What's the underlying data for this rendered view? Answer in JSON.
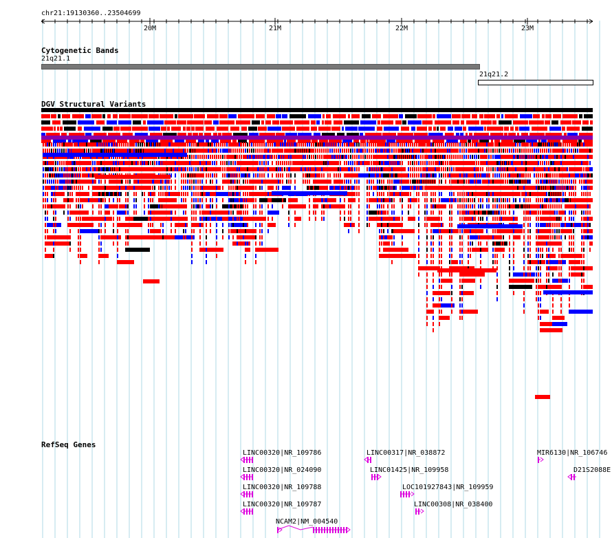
{
  "browser": {
    "coordinate_readout": "chr21:19130360..23504699",
    "ruler_ticks": [
      "20M",
      "21M",
      "22M",
      "23M"
    ]
  },
  "tracks": {
    "cytobands": {
      "title": "Cytogenetic Bands",
      "bands": [
        "21q21.1",
        "21q21.2"
      ]
    },
    "dgv": {
      "title": "DGV Structural Variants",
      "colors": {
        "loss": "#ff0000",
        "gain": "#0000ff",
        "complex": "#000000",
        "inversion": "#993333"
      }
    },
    "refseq": {
      "title": "RefSeq Genes",
      "genes": [
        "LINC00320|NR_109786",
        "LINC00320|NR_024090",
        "LINC00320|NR_109788",
        "LINC00320|NR_109787",
        "NCAM2|NM_004540",
        "LINC00317|NR_038872",
        "LINC01425|NR_109958",
        "LOC101927843|NR_109959",
        "LINC00308|NR_038400",
        "MIR6130|NR_106746",
        "D21S2088E"
      ],
      "color": "#dd00dd"
    }
  }
}
